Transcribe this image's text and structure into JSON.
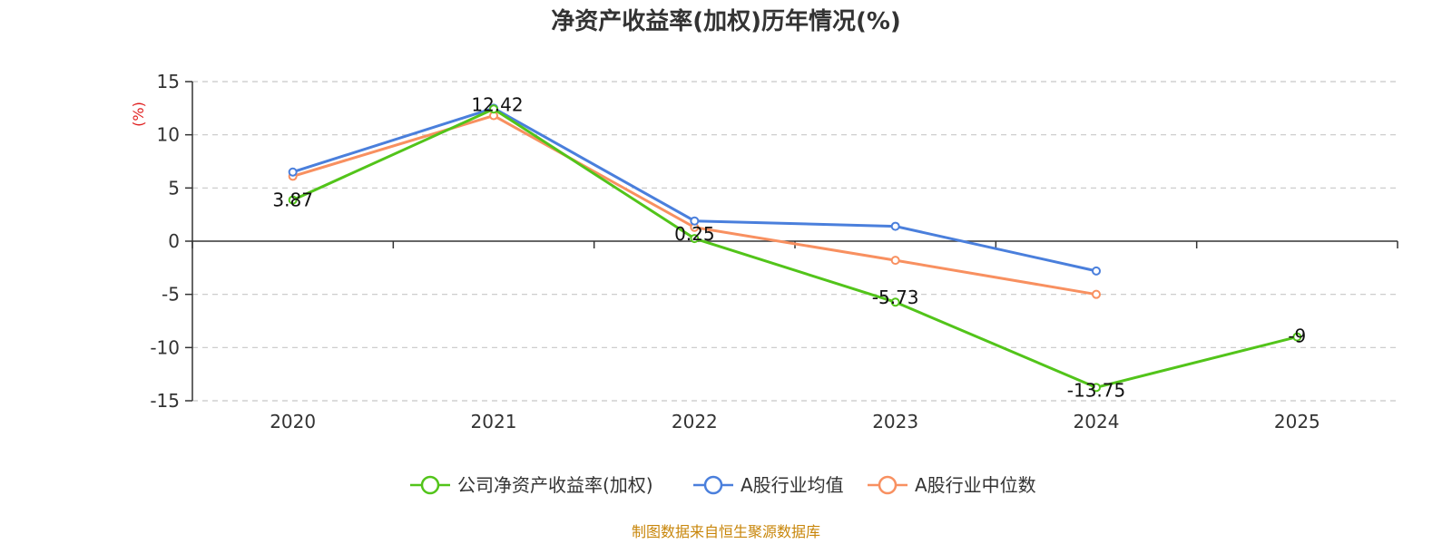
{
  "chart_data": {
    "type": "line",
    "title": "净资产收益率(加权)历年情况(%)",
    "ylabel": "(%)",
    "xlabel": "",
    "categories": [
      "2020",
      "2021",
      "2022",
      "2023",
      "2024",
      "2025"
    ],
    "ylim": [
      -15,
      15
    ],
    "yticks": [
      15,
      10,
      5,
      0,
      -5,
      -10,
      -15
    ],
    "grid": true,
    "legend_position": "bottom",
    "series": [
      {
        "name": "公司净资产收益率(加权)",
        "color": "#52c41a",
        "values": [
          3.87,
          12.42,
          0.25,
          -5.73,
          -13.75,
          -9
        ],
        "labels": [
          "3.87",
          "12.42",
          "0.25",
          "-5.73",
          "-13.75",
          "-9"
        ]
      },
      {
        "name": "A股行业均值",
        "color": "#4a7fdc",
        "values": [
          6.5,
          12.5,
          1.9,
          1.4,
          -2.8,
          null
        ]
      },
      {
        "name": "A股行业中位数",
        "color": "#f89060",
        "values": [
          6.1,
          11.8,
          1.3,
          -1.8,
          -5.0,
          null
        ]
      }
    ],
    "source": "制图数据来自恒生聚源数据库",
    "source_color": "#c8860a",
    "ylabel_color": "#e02020"
  }
}
